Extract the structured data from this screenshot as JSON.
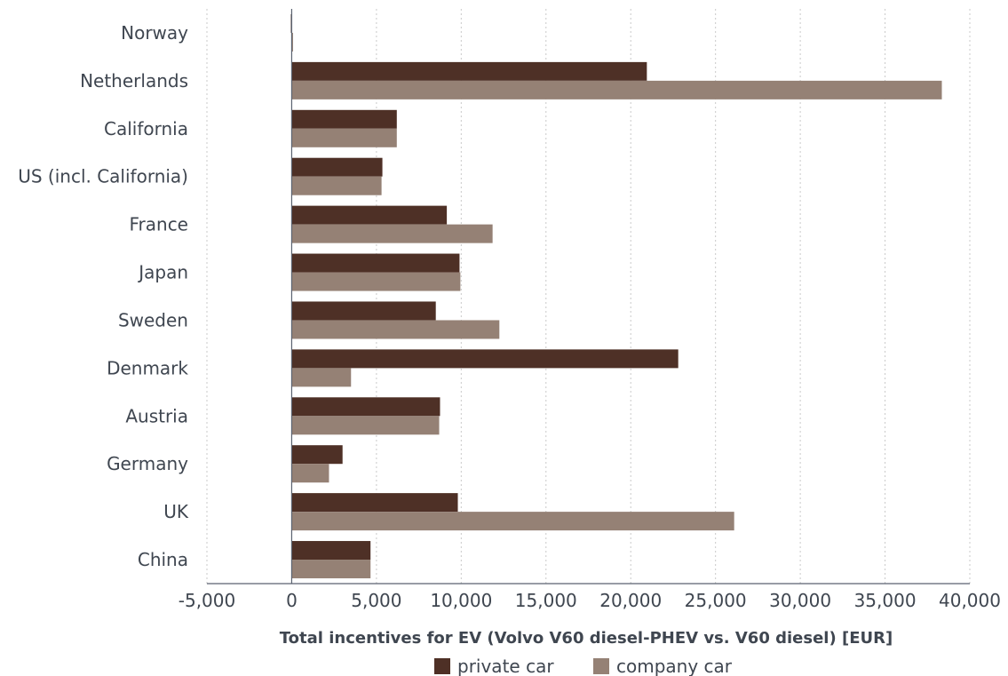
{
  "chart_data": {
    "type": "bar",
    "orientation": "horizontal",
    "categories": [
      "Norway",
      "Netherlands",
      "California",
      "US (incl. California)",
      "France",
      "Japan",
      "Sweden",
      "Denmark",
      "Austria",
      "Germany",
      "UK",
      "China"
    ],
    "series": [
      {
        "name": "private car",
        "color": "#4e3026",
        "values": [
          -50,
          20950,
          6200,
          5350,
          9150,
          9900,
          8500,
          22800,
          8750,
          3000,
          9800,
          4650
        ]
      },
      {
        "name": "company car",
        "color": "#958175",
        "values": [
          30,
          38350,
          6200,
          5300,
          11850,
          9950,
          12250,
          3500,
          8700,
          2200,
          26100,
          4650
        ]
      }
    ],
    "xlabel": "Total incentives for EV (Volvo V60 diesel-PHEV vs. V60 diesel) [EUR]",
    "ylabel": "",
    "xlim": [
      -5000,
      40000
    ],
    "xticks": [
      -5000,
      0,
      5000,
      10000,
      15000,
      20000,
      25000,
      30000,
      35000,
      40000
    ],
    "xtick_labels": [
      "-5,000",
      "0",
      "5,000",
      "10,000",
      "15,000",
      "20,000",
      "25,000",
      "30,000",
      "35,000",
      "40,000"
    ],
    "grid": "vertical dotted",
    "legend_position": "bottom"
  }
}
